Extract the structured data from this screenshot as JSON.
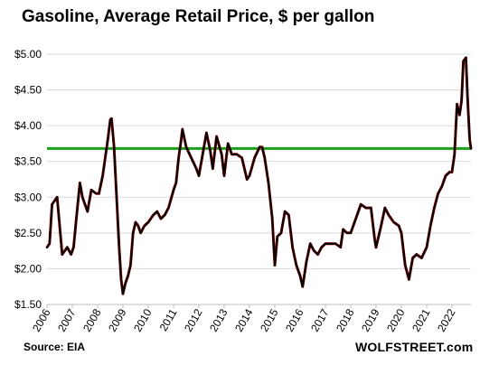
{
  "title": "Gasoline, Average Retail Price, $ per gallon",
  "source": "Source: EIA",
  "brand": "WOLFSTREET.com",
  "chart_data": {
    "type": "line",
    "title": "Gasoline, Average Retail Price, $ per gallon",
    "ylabel": "",
    "xlabel": "",
    "ylim": [
      1.5,
      5.1
    ],
    "xlim": [
      2006.0,
      2022.75
    ],
    "yticks": [
      1.5,
      2.0,
      2.5,
      3.0,
      3.5,
      4.0,
      4.5,
      5.0
    ],
    "ytick_labels": [
      "$1.50",
      "$2.00",
      "$2.50",
      "$3.00",
      "$3.50",
      "$4.00",
      "$4.50",
      "$5.00"
    ],
    "xtick_labels": [
      "2006",
      "2007",
      "2008",
      "2009",
      "2010",
      "2011",
      "2012",
      "2013",
      "2014",
      "2015",
      "2016",
      "2017",
      "2018",
      "2019",
      "2020",
      "2021",
      "2022"
    ],
    "grid": "horizontal",
    "line_color": "#e60000",
    "marker_color": "#000000",
    "reference_line": {
      "y": 3.68,
      "color": "#1aa01a"
    },
    "series": [
      {
        "x": [
          2006.0,
          2006.1,
          2006.2,
          2006.3,
          2006.4,
          2006.5,
          2006.6,
          2006.7,
          2006.8,
          2006.95,
          2007.05,
          2007.2,
          2007.3,
          2007.4,
          2007.5,
          2007.6,
          2007.75,
          2007.95,
          2008.05,
          2008.2,
          2008.3,
          2008.4,
          2008.5,
          2008.55,
          2008.65,
          2008.75,
          2008.85,
          2008.93,
          2009.0,
          2009.1,
          2009.2,
          2009.3,
          2009.4,
          2009.5,
          2009.6,
          2009.7,
          2009.85,
          2010.0,
          2010.2,
          2010.35,
          2010.5,
          2010.65,
          2010.8,
          2011.0,
          2011.1,
          2011.2,
          2011.3,
          2011.35,
          2011.5,
          2011.7,
          2011.9,
          2012.0,
          2012.15,
          2012.3,
          2012.45,
          2012.55,
          2012.7,
          2012.9,
          2013.0,
          2013.15,
          2013.3,
          2013.5,
          2013.7,
          2013.9,
          2014.0,
          2014.2,
          2014.4,
          2014.5,
          2014.6,
          2014.75,
          2014.9,
          2015.0,
          2015.1,
          2015.25,
          2015.4,
          2015.55,
          2015.7,
          2015.85,
          2016.0,
          2016.1,
          2016.25,
          2016.4,
          2016.55,
          2016.7,
          2016.85,
          2017.0,
          2017.2,
          2017.4,
          2017.6,
          2017.7,
          2017.85,
          2018.0,
          2018.2,
          2018.4,
          2018.6,
          2018.8,
          2018.95,
          2019.0,
          2019.2,
          2019.35,
          2019.5,
          2019.7,
          2019.9,
          2020.0,
          2020.15,
          2020.3,
          2020.45,
          2020.6,
          2020.8,
          2021.0,
          2021.15,
          2021.3,
          2021.45,
          2021.6,
          2021.75,
          2021.9,
          2022.0,
          2022.1,
          2022.2,
          2022.3,
          2022.38,
          2022.45,
          2022.55,
          2022.62,
          2022.7,
          2022.75
        ],
        "values": [
          2.3,
          2.35,
          2.9,
          2.95,
          3.0,
          2.6,
          2.2,
          2.25,
          2.3,
          2.2,
          2.3,
          2.85,
          3.2,
          3.0,
          2.9,
          2.8,
          3.1,
          3.05,
          3.05,
          3.3,
          3.55,
          3.8,
          4.08,
          4.1,
          3.7,
          3.0,
          2.3,
          1.85,
          1.65,
          1.8,
          1.9,
          2.05,
          2.5,
          2.65,
          2.6,
          2.5,
          2.6,
          2.65,
          2.75,
          2.8,
          2.7,
          2.75,
          2.85,
          3.1,
          3.2,
          3.55,
          3.8,
          3.95,
          3.7,
          3.55,
          3.4,
          3.3,
          3.6,
          3.9,
          3.65,
          3.4,
          3.85,
          3.6,
          3.3,
          3.75,
          3.6,
          3.6,
          3.55,
          3.25,
          3.3,
          3.55,
          3.7,
          3.7,
          3.55,
          3.2,
          2.7,
          2.05,
          2.45,
          2.5,
          2.8,
          2.75,
          2.3,
          2.05,
          1.9,
          1.75,
          2.1,
          2.35,
          2.25,
          2.2,
          2.3,
          2.35,
          2.35,
          2.35,
          2.3,
          2.55,
          2.5,
          2.5,
          2.7,
          2.9,
          2.85,
          2.85,
          2.4,
          2.3,
          2.6,
          2.85,
          2.75,
          2.65,
          2.6,
          2.5,
          2.05,
          1.85,
          2.15,
          2.2,
          2.15,
          2.3,
          2.6,
          2.85,
          3.05,
          3.15,
          3.3,
          3.35,
          3.35,
          3.6,
          4.3,
          4.15,
          4.35,
          4.9,
          4.95,
          4.35,
          3.8,
          3.68
        ]
      }
    ]
  }
}
